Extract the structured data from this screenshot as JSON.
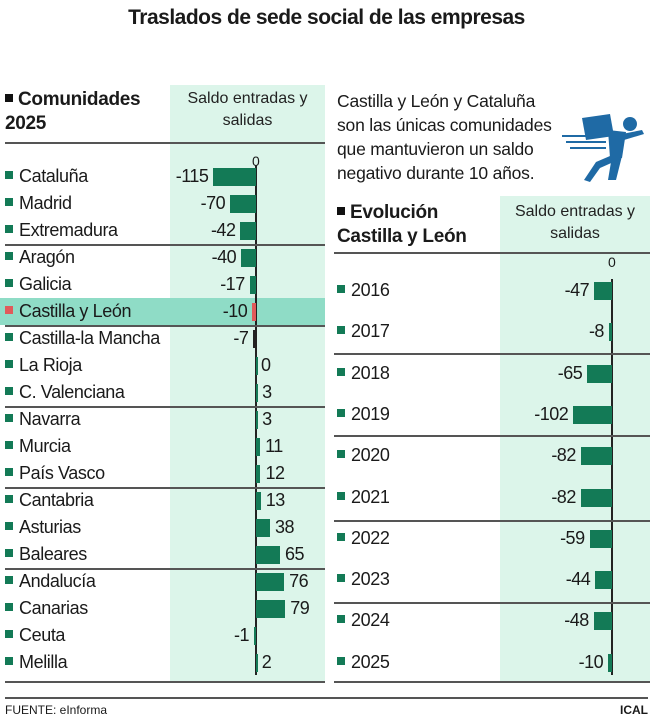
{
  "title": "Traslados de sede social de las empresas",
  "chart_data": [
    {
      "type": "bar",
      "orientation": "horizontal",
      "title": "Comunidades 2025",
      "column_header": "Saldo entradas y salidas",
      "zero_label": "0",
      "categories": [
        "Cataluña",
        "Madrid",
        "Extremadura",
        "Aragón",
        "Galicia",
        "Castilla y León",
        "Castilla-la Mancha",
        "La Rioja",
        "C. Valenciana",
        "Navarra",
        "Murcia",
        "País Vasco",
        "Cantabria",
        "Asturias",
        "Baleares",
        "Andalucía",
        "Canarias",
        "Ceuta",
        "Melilla"
      ],
      "values": [
        -115,
        -70,
        -42,
        -40,
        -17,
        -10,
        -7,
        0,
        3,
        3,
        11,
        12,
        13,
        38,
        65,
        76,
        79,
        -1,
        2
      ],
      "highlight": "Castilla y León",
      "colors": {
        "bar": "#137a56",
        "highlight": "#e05a5a",
        "highlight_row": "#8fdcc6",
        "band": "#dcf5ea"
      }
    },
    {
      "type": "bar",
      "orientation": "horizontal",
      "title": "Evolución Castilla y León",
      "column_header": "Saldo entradas y salidas",
      "zero_label": "0",
      "categories": [
        "2016",
        "2017",
        "2018",
        "2019",
        "2020",
        "2021",
        "2022",
        "2023",
        "2024",
        "2025"
      ],
      "values": [
        -47,
        -8,
        -65,
        -102,
        -82,
        -82,
        -59,
        -44,
        -48,
        -10
      ],
      "colors": {
        "bar": "#137a56"
      }
    }
  ],
  "note": "Castilla y León y Cataluña son las únicas comunidades que mantuvieron un saldo negativo durante 10 años.",
  "footer": {
    "source": "FUENTE: eInforma",
    "credit": "ICAL"
  },
  "icons": {
    "illustration": "running-businessman-icon",
    "color": "#1f6aa5"
  }
}
